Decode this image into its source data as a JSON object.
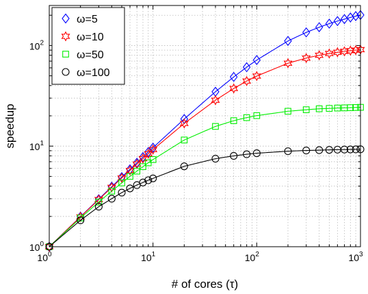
{
  "chart_data": {
    "type": "line",
    "xlabel": "# of cores (τ)",
    "ylabel": "speedup",
    "xscale": "log",
    "yscale": "log",
    "xlim": [
      1,
      1000
    ],
    "ylim": [
      1,
      250
    ],
    "grid": true,
    "legend_position": "top-left",
    "x_ticks": [
      {
        "base": "10",
        "exp": "0",
        "value": 1
      },
      {
        "base": "10",
        "exp": "1",
        "value": 10
      },
      {
        "base": "10",
        "exp": "2",
        "value": 100
      },
      {
        "base": "10",
        "exp": "3",
        "value": 1000
      }
    ],
    "y_ticks": [
      {
        "base": "10",
        "exp": "0",
        "value": 1
      },
      {
        "base": "10",
        "exp": "1",
        "value": 10
      },
      {
        "base": "10",
        "exp": "2",
        "value": 100
      }
    ],
    "x": [
      1,
      2,
      3,
      4,
      5,
      6,
      7,
      8,
      9,
      10,
      20,
      40,
      60,
      80,
      100,
      200,
      300,
      400,
      500,
      600,
      700,
      800,
      900,
      1000
    ],
    "series": [
      {
        "name": "ω=5",
        "omega": 5,
        "color": "#0000ff",
        "marker": "diamond",
        "values": [
          1,
          1.99,
          2.97,
          3.95,
          4.92,
          5.88,
          6.83,
          7.78,
          8.72,
          9.65,
          18.6,
          34.7,
          48.7,
          60.9,
          71.7,
          111.0,
          135.0,
          152.0,
          165.0,
          175.0,
          183.0,
          190.0,
          196.0,
          201.0
        ]
      },
      {
        "name": "ω=10",
        "omega": 10,
        "color": "#ff0000",
        "marker": "hexagram",
        "values": [
          1,
          1.98,
          2.94,
          3.89,
          4.82,
          5.73,
          6.63,
          7.51,
          8.38,
          9.23,
          16.8,
          28.6,
          37.4,
          44.3,
          49.7,
          66.7,
          75.0,
          80.0,
          83.3,
          85.7,
          87.5,
          88.9,
          90.0,
          91.0
        ]
      },
      {
        "name": "ω=50",
        "omega": 50,
        "color": "#00ee00",
        "marker": "square",
        "values": [
          1,
          1.93,
          2.78,
          3.57,
          4.31,
          5.0,
          5.64,
          6.25,
          6.82,
          7.35,
          11.5,
          15.7,
          17.9,
          19.2,
          20.1,
          22.2,
          23.0,
          23.5,
          23.7,
          23.9,
          24.0,
          24.1,
          24.2,
          24.3
        ]
      },
      {
        "name": "ω=100",
        "omega": 100,
        "color": "#000000",
        "marker": "circle",
        "values": [
          1,
          1.83,
          2.5,
          3.0,
          3.45,
          3.8,
          4.1,
          4.35,
          4.58,
          4.78,
          6.3,
          7.5,
          8.0,
          8.3,
          8.5,
          8.9,
          9.05,
          9.12,
          9.18,
          9.22,
          9.25,
          9.27,
          9.28,
          9.3
        ]
      }
    ]
  }
}
